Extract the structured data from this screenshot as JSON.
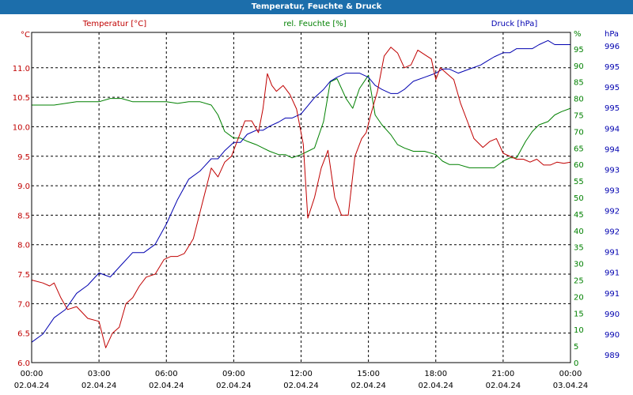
{
  "window": {
    "title": "Temperatur, Feuchte & Druck"
  },
  "colors": {
    "temperature": "#c00000",
    "humidity": "#008000",
    "pressure": "#0000b0",
    "grid": "#000000",
    "axis_text": "#000000"
  },
  "chart_data": {
    "type": "line",
    "title": "Temperatur, Feuchte & Druck",
    "x_unit": "hours since 02.04.24 00:00",
    "x_ticks": [
      {
        "time": "00:00",
        "date": "02.04.24"
      },
      {
        "time": "03:00",
        "date": "02.04.24"
      },
      {
        "time": "06:00",
        "date": "02.04.24"
      },
      {
        "time": "09:00",
        "date": "02.04.24"
      },
      {
        "time": "12:00",
        "date": "02.04.24"
      },
      {
        "time": "15:00",
        "date": "02.04.24"
      },
      {
        "time": "18:00",
        "date": "02.04.24"
      },
      {
        "time": "21:00",
        "date": "02.04.24"
      },
      {
        "time": "00:00",
        "date": "03.04.24"
      }
    ],
    "xlim": [
      0,
      24
    ],
    "axes": {
      "temperature": {
        "legend": "Temperatur [°C]",
        "unit": "°C",
        "ylim": [
          6.0,
          11.6
        ],
        "ticks": [
          "6.0",
          "6.5",
          "7.0",
          "7.5",
          "8.0",
          "8.5",
          "9.0",
          "9.5",
          "10.0",
          "10.5",
          "11.0"
        ]
      },
      "humidity": {
        "legend": "rel. Feuchte [%]",
        "unit": "%",
        "ylim": [
          0,
          100
        ],
        "ticks": [
          "0",
          "5",
          "10",
          "15",
          "20",
          "25",
          "30",
          "35",
          "40",
          "45",
          "50",
          "55",
          "60",
          "65",
          "70",
          "75",
          "80",
          "85",
          "90",
          "95"
        ]
      },
      "pressure": {
        "legend": "Druck [hPa]",
        "unit": "hPa",
        "ylim": [
          988.5,
          996.6
        ],
        "ticks": [
          "989",
          "990",
          "990",
          "991",
          "991",
          "991",
          "992",
          "992",
          "993",
          "993",
          "994",
          "994",
          "995",
          "995",
          "995",
          "996"
        ]
      }
    },
    "series": [
      {
        "name": "Temperatur [°C]",
        "axis": "temperature",
        "x": [
          0,
          0.5,
          0.8,
          1,
          1.3,
          1.6,
          2,
          2.5,
          3,
          3.3,
          3.6,
          3.9,
          4.2,
          4.5,
          4.8,
          5.1,
          5.5,
          5.9,
          6.2,
          6.5,
          6.8,
          7.2,
          7.6,
          7.8,
          8,
          8.3,
          8.6,
          8.9,
          9.2,
          9.5,
          9.8,
          10.1,
          10.3,
          10.5,
          10.7,
          10.9,
          11.2,
          11.5,
          11.8,
          12.1,
          12.3,
          12.6,
          12.9,
          13.2,
          13.5,
          13.8,
          14.1,
          14.4,
          14.7,
          14.9,
          15.1,
          15.4,
          15.7,
          16,
          16.3,
          16.6,
          16.9,
          17.2,
          17.6,
          17.8,
          18,
          18.2,
          18.5,
          18.8,
          19.1,
          19.4,
          19.7,
          20.1,
          20.4,
          20.7,
          21,
          21.3,
          21.6,
          21.9,
          22.2,
          22.5,
          22.8,
          23.1,
          23.4,
          23.7,
          24
        ],
        "values": [
          7.4,
          7.35,
          7.3,
          7.35,
          7.1,
          6.9,
          6.95,
          6.75,
          6.7,
          6.25,
          6.5,
          6.6,
          7.0,
          7.1,
          7.3,
          7.45,
          7.5,
          7.75,
          7.8,
          7.8,
          7.85,
          8.1,
          8.7,
          9.0,
          9.3,
          9.15,
          9.4,
          9.5,
          9.8,
          10.1,
          10.1,
          9.9,
          10.3,
          10.9,
          10.7,
          10.6,
          10.7,
          10.55,
          10.3,
          9.7,
          8.45,
          8.8,
          9.3,
          9.6,
          8.8,
          8.5,
          8.5,
          9.5,
          9.8,
          9.9,
          10.2,
          10.6,
          11.2,
          11.35,
          11.25,
          11.0,
          11.05,
          11.3,
          11.2,
          11.15,
          10.8,
          11.0,
          10.9,
          10.8,
          10.4,
          10.1,
          9.8,
          9.65,
          9.75,
          9.8,
          9.55,
          9.5,
          9.45,
          9.45,
          9.4,
          9.45,
          9.35,
          9.35,
          9.4,
          9.38,
          9.4
        ]
      },
      {
        "name": "rel. Feuchte [%]",
        "axis": "humidity",
        "x": [
          0,
          0.5,
          1,
          1.5,
          2,
          2.5,
          3,
          3.5,
          4,
          4.5,
          5,
          5.5,
          6,
          6.5,
          7,
          7.5,
          8,
          8.3,
          8.6,
          9,
          9.3,
          9.6,
          10,
          10.3,
          10.6,
          11,
          11.3,
          11.6,
          12,
          12.3,
          12.6,
          13,
          13.3,
          13.6,
          14,
          14.3,
          14.6,
          15,
          15.3,
          15.6,
          16,
          16.3,
          16.6,
          17,
          17.5,
          18,
          18.3,
          18.6,
          19,
          19.5,
          20,
          20.3,
          20.6,
          21,
          21.3,
          21.6,
          22,
          22.3,
          22.6,
          23,
          23.3,
          23.6,
          24
        ],
        "values": [
          78,
          78,
          78,
          78.5,
          79,
          79,
          79,
          80,
          80,
          79,
          79,
          79,
          79,
          78.5,
          79,
          79,
          78,
          75,
          70,
          68,
          68,
          67,
          66,
          65,
          64,
          63,
          63,
          62,
          63,
          64,
          65,
          73,
          85,
          86,
          80,
          77,
          83,
          87,
          75,
          72,
          69,
          66,
          65,
          64,
          64,
          63,
          61,
          60,
          60,
          59,
          59,
          59,
          59,
          61,
          62,
          62,
          67,
          70,
          72,
          73,
          75,
          76,
          77
        ]
      },
      {
        "name": "Druck [hPa]",
        "axis": "pressure",
        "x": [
          0,
          0.5,
          1,
          1.5,
          2,
          2.5,
          3,
          3.5,
          4,
          4.5,
          5,
          5.5,
          6,
          6.5,
          7,
          7.5,
          8,
          8.3,
          8.6,
          9,
          9.3,
          9.6,
          10,
          10.3,
          10.6,
          11,
          11.3,
          11.6,
          12,
          12.3,
          12.6,
          13,
          13.3,
          13.6,
          14,
          14.3,
          14.6,
          15,
          15.3,
          15.6,
          16,
          16.3,
          16.6,
          17,
          17.5,
          18,
          18.3,
          18.6,
          19,
          19.5,
          20,
          20.3,
          20.6,
          21,
          21.3,
          21.6,
          22,
          22.3,
          22.6,
          23,
          23.3,
          23.6,
          24
        ],
        "values": [
          989.0,
          989.2,
          989.6,
          989.8,
          990.2,
          990.4,
          990.7,
          990.6,
          990.9,
          991.2,
          991.2,
          991.4,
          991.9,
          992.5,
          993.0,
          993.2,
          993.5,
          993.5,
          993.7,
          993.9,
          993.9,
          994.1,
          994.2,
          994.2,
          994.3,
          994.4,
          994.5,
          994.5,
          994.6,
          994.8,
          995.0,
          995.2,
          995.4,
          995.5,
          995.6,
          995.6,
          995.6,
          995.5,
          995.3,
          995.2,
          995.1,
          995.1,
          995.2,
          995.4,
          995.5,
          995.6,
          995.7,
          995.7,
          995.6,
          995.7,
          995.8,
          995.9,
          996.0,
          996.1,
          996.1,
          996.2,
          996.2,
          996.2,
          996.3,
          996.4,
          996.3,
          996.3,
          996.3
        ]
      }
    ]
  }
}
